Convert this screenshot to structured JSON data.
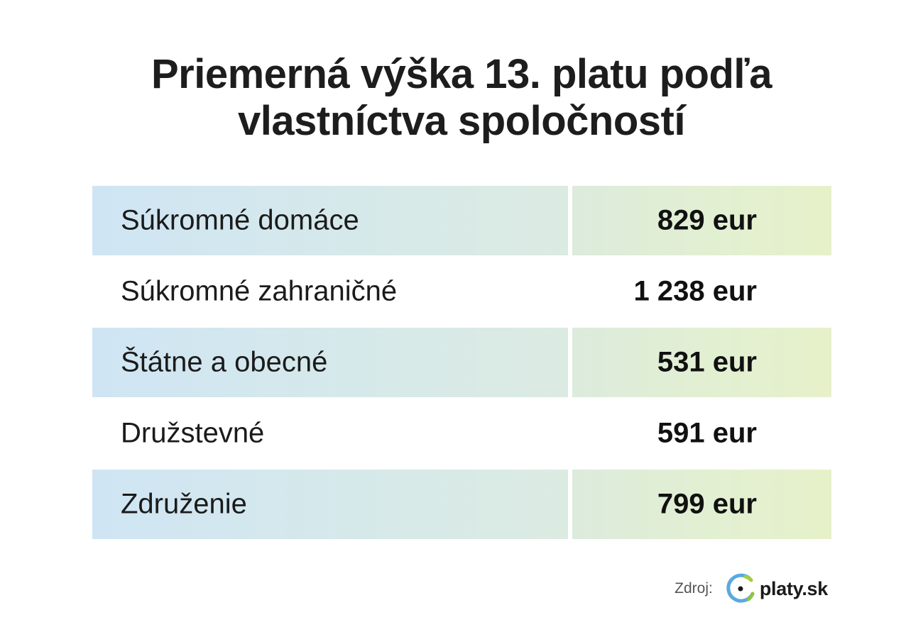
{
  "title": {
    "line1": "Priemerná výška 13. platu podľa",
    "line2": "vlastníctva spoločností"
  },
  "table": {
    "rows": [
      {
        "label": "Súkromné domáce",
        "value": "829 eur",
        "shaded": true
      },
      {
        "label": "Súkromné zahraničné",
        "value": "1 238 eur",
        "shaded": false
      },
      {
        "label": "Štátne a obecné",
        "value": "531 eur",
        "shaded": true
      },
      {
        "label": "Družstevné",
        "value": "591 eur",
        "shaded": false
      },
      {
        "label": "Združenie",
        "value": "799 eur",
        "shaded": true
      }
    ]
  },
  "source": {
    "label": "Zdroj:",
    "logo_text": "platy.sk",
    "logo_icon": "platy-logo-icon"
  },
  "colors": {
    "row_shade_left": "#cfe5f4",
    "row_shade_right": "#e6f1c9",
    "logo_blue": "#5aa9e0",
    "logo_green": "#a6cf3a",
    "text": "#1b1b1b"
  }
}
